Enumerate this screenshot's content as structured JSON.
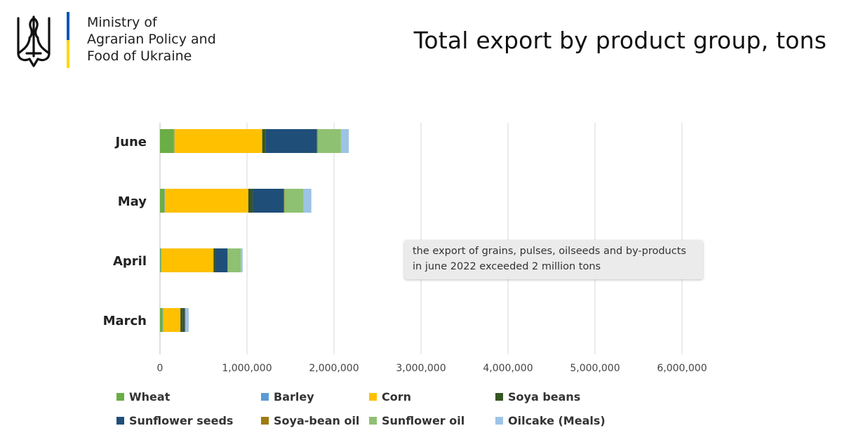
{
  "header": {
    "ministry_lines": [
      "Ministry of",
      "Agrarian Policy and",
      "Food of Ukraine"
    ],
    "flag_colors": [
      "#0057b8",
      "#ffd700"
    ],
    "emblem_icon": "trident-icon"
  },
  "callout": {
    "text": "the export of grains, pulses, oilseeds and by-products in june 2022 exceeded 2 million tons"
  },
  "chart_data": {
    "type": "bar",
    "orientation": "horizontal",
    "stacked": true,
    "title": "Total export by product group, tons",
    "xlabel": "",
    "ylabel": "",
    "xlim": [
      0,
      6000000
    ],
    "grid": true,
    "legend_position": "bottom",
    "categories": [
      "June",
      "May",
      "April",
      "March"
    ],
    "x_ticks": [
      0,
      1000000,
      2000000,
      3000000,
      4000000,
      5000000,
      6000000
    ],
    "x_tick_labels": [
      "0",
      "1,000,000",
      "2,000,000",
      "3,000,000",
      "4,000,000",
      "5,000,000",
      "6,000,000"
    ],
    "series": [
      {
        "name": "Wheat",
        "color": "#6aae45",
        "values": [
          160000,
          50000,
          10000,
          30000
        ]
      },
      {
        "name": "Barley",
        "color": "#5b9bd5",
        "values": [
          5000,
          5000,
          5000,
          5000
        ]
      },
      {
        "name": "Corn",
        "color": "#ffc000",
        "values": [
          1010000,
          960000,
          600000,
          200000
        ]
      },
      {
        "name": "Soya beans",
        "color": "#375623",
        "values": [
          40000,
          50000,
          30000,
          30000
        ]
      },
      {
        "name": "Sunflower seeds",
        "color": "#1f4e79",
        "values": [
          590000,
          360000,
          130000,
          20000
        ]
      },
      {
        "name": "Soya-bean oil",
        "color": "#9e7a10",
        "values": [
          5000,
          5000,
          5000,
          5000
        ]
      },
      {
        "name": "Sunflower oil",
        "color": "#8fc172",
        "values": [
          270000,
          220000,
          150000,
          10000
        ]
      },
      {
        "name": "Oilcake (Meals)",
        "color": "#9dc3e6",
        "values": [
          90000,
          90000,
          20000,
          30000
        ]
      }
    ]
  }
}
